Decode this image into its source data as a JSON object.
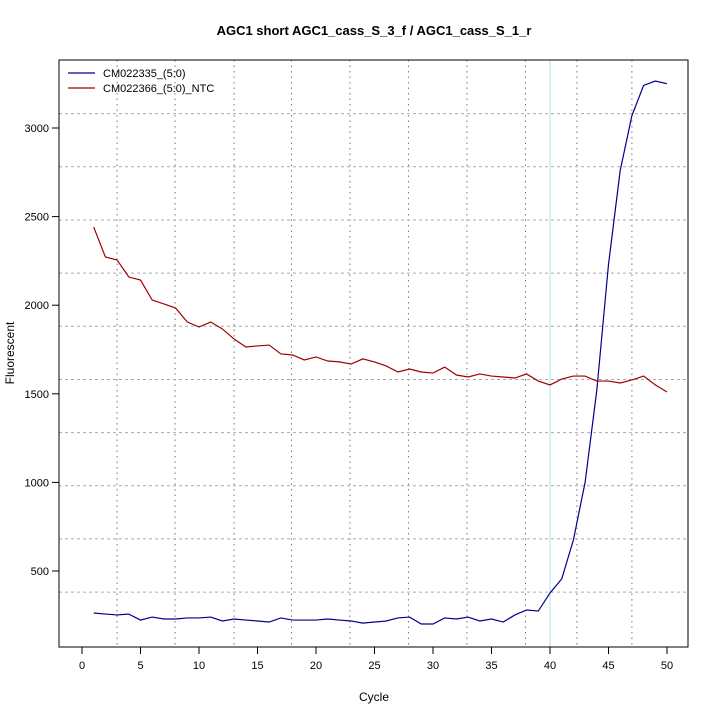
{
  "chart_data": {
    "type": "line",
    "title": "AGC1 short AGC1_cass_S_3_f / AGC1_cass_S_1_r",
    "xlabel": "Cycle",
    "ylabel": "Fluorescent",
    "xlim": [
      -2,
      52
    ],
    "ylim": [
      150,
      3330
    ],
    "xticks": [
      0,
      5,
      10,
      15,
      20,
      25,
      30,
      35,
      40,
      45,
      50
    ],
    "yticks": [
      500,
      1000,
      1500,
      2000,
      2500,
      3000
    ],
    "threshold_cycle": 40,
    "grid": true,
    "legend_position": "top-left",
    "colors": {
      "threshold": "#a8e4ea",
      "grid": "#999999"
    },
    "x": [
      1,
      2,
      3,
      4,
      5,
      6,
      7,
      8,
      9,
      10,
      11,
      12,
      13,
      14,
      15,
      16,
      17,
      18,
      19,
      20,
      21,
      22,
      23,
      24,
      25,
      26,
      27,
      28,
      29,
      30,
      31,
      32,
      33,
      34,
      35,
      36,
      37,
      38,
      39,
      40,
      41,
      42,
      43,
      44,
      45,
      46,
      47,
      48,
      49,
      50
    ],
    "series": [
      {
        "name": "CM022335_(5:0)",
        "color": "#00008b",
        "values": [
          263,
          257,
          252,
          257,
          223,
          240,
          229,
          229,
          235,
          235,
          240,
          218,
          229,
          223,
          218,
          212,
          235,
          223,
          223,
          223,
          229,
          223,
          218,
          206,
          212,
          218,
          235,
          240,
          201,
          201,
          235,
          229,
          240,
          218,
          229,
          212,
          252,
          280,
          274,
          376,
          455,
          675,
          1000,
          1520,
          2230,
          2760,
          3070,
          3240,
          3265,
          3250
        ]
      },
      {
        "name": "CM022366_(5:0)_NTC",
        "color": "#a00000",
        "values": [
          2441,
          2272,
          2255,
          2159,
          2142,
          2029,
          2007,
          1984,
          1905,
          1877,
          1905,
          1866,
          1809,
          1764,
          1770,
          1775,
          1725,
          1719,
          1691,
          1708,
          1685,
          1680,
          1668,
          1697,
          1680,
          1657,
          1623,
          1640,
          1623,
          1617,
          1651,
          1606,
          1595,
          1612,
          1600,
          1595,
          1589,
          1612,
          1572,
          1550,
          1583,
          1600,
          1600,
          1572,
          1572,
          1561,
          1578,
          1600,
          1550,
          1510
        ]
      }
    ]
  }
}
